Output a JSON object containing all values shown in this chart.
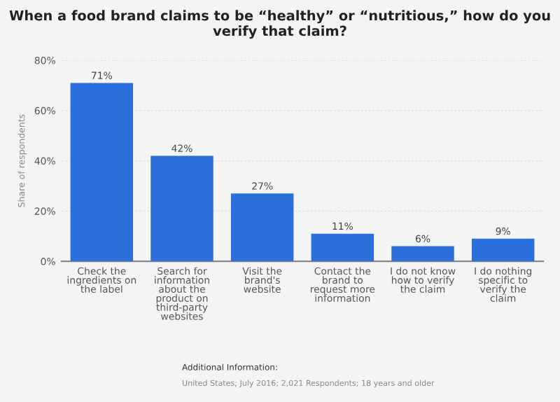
{
  "chart_data": {
    "type": "bar",
    "title": "When a food brand claims to be “healthy” or “nutritious,” how do you verify that claim?",
    "ylabel": "Share of respondents",
    "categories": [
      "Check the\ningredients on\nthe label",
      "Search for\ninformation\nabout the\nproduct on\nthird-party\nwebsites",
      "Visit the\nbrand's\nwebsite",
      "Contact the\nbrand to\nrequest more\ninformation",
      "I do not know\nhow to verify\nthe claim",
      "I do nothing\nspecific to\nverify the\nclaim"
    ],
    "values": [
      71,
      42,
      27,
      11,
      6,
      9
    ],
    "color": "#2a6fdb",
    "value_labels": [
      "71%",
      "42%",
      "27%",
      "11%",
      "6%",
      "9%"
    ],
    "ylim": [
      0,
      80
    ],
    "yticks": [
      {
        "value": 0,
        "label": "0%"
      },
      {
        "value": 20,
        "label": "20%"
      },
      {
        "value": 40,
        "label": "40%"
      },
      {
        "value": 60,
        "label": "60%"
      },
      {
        "value": 80,
        "label": "80%"
      }
    ],
    "grid": "y",
    "annotations": [
      "Additional Information:",
      "United States; July 2016; 2,021 Respondents; 18 years and older"
    ]
  }
}
